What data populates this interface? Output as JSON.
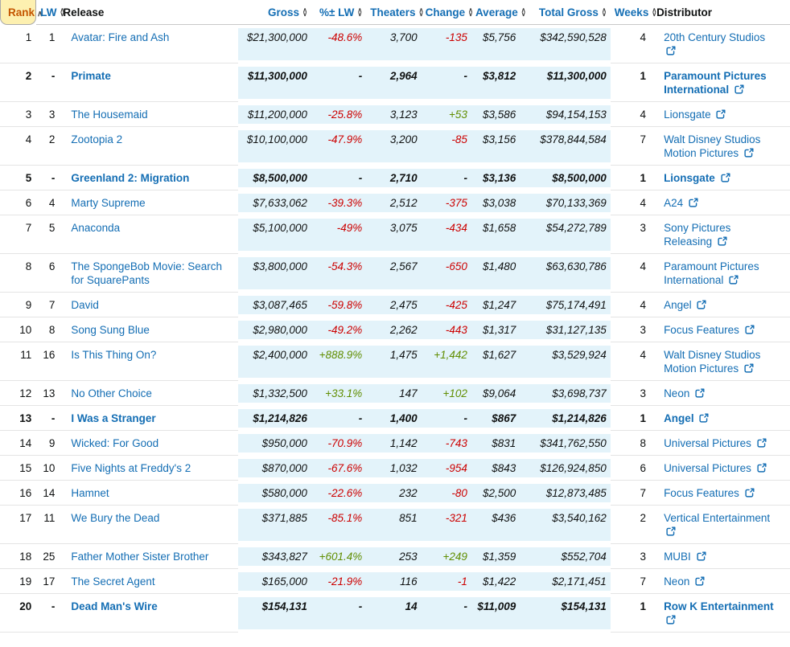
{
  "colors": {
    "link_blue": "#146eb4",
    "negative_red": "#cc0000",
    "positive_green": "#618e02",
    "shaded_column_bg": "#e3f3fa",
    "sorted_header_bg": "#fdf0b0",
    "sorted_header_text": "#c45500"
  },
  "icons": {
    "sort_ascending": "∧",
    "sort_up": "∧",
    "sort_down": "∨",
    "external_link": "external-link-icon"
  },
  "table": {
    "columns": [
      {
        "key": "rank",
        "label": "Rank",
        "sort": "asc",
        "style": "rank",
        "align": "left"
      },
      {
        "key": "lw",
        "label": "LW",
        "sort": "both",
        "style": "link",
        "align": "right"
      },
      {
        "key": "release",
        "label": "Release",
        "sort": "none",
        "style": "plain",
        "align": "left"
      },
      {
        "key": "gross",
        "label": "Gross",
        "sort": "both",
        "style": "link",
        "align": "right"
      },
      {
        "key": "pct",
        "label": "%± LW",
        "sort": "both",
        "style": "link",
        "align": "right"
      },
      {
        "key": "theaters",
        "label": "Theaters",
        "sort": "both",
        "style": "link",
        "align": "right"
      },
      {
        "key": "change",
        "label": "Change",
        "sort": "both",
        "style": "link",
        "align": "right"
      },
      {
        "key": "average",
        "label": "Average",
        "sort": "both",
        "style": "link",
        "align": "right"
      },
      {
        "key": "total_gross",
        "label": "Total Gross",
        "sort": "both",
        "style": "link",
        "align": "right"
      },
      {
        "key": "weeks",
        "label": "Weeks",
        "sort": "both",
        "style": "link",
        "align": "right"
      },
      {
        "key": "distributor",
        "label": "Distributor",
        "sort": "none",
        "style": "plain",
        "align": "left"
      }
    ],
    "rows": [
      {
        "rank": "1",
        "lw": "1",
        "release": "Avatar: Fire and Ash",
        "gross": "$21,300,000",
        "pct": "-48.6%",
        "pct_dir": "neg",
        "theaters": "3,700",
        "change": "-135",
        "change_dir": "neg",
        "average": "$5,756",
        "total_gross": "$342,590,528",
        "weeks": "4",
        "distributor": "20th Century Studios",
        "new": false
      },
      {
        "rank": "2",
        "lw": "-",
        "release": "Primate",
        "gross": "$11,300,000",
        "pct": "-",
        "pct_dir": "none",
        "theaters": "2,964",
        "change": "-",
        "change_dir": "none",
        "average": "$3,812",
        "total_gross": "$11,300,000",
        "weeks": "1",
        "distributor": "Paramount Pictures International",
        "new": true
      },
      {
        "rank": "3",
        "lw": "3",
        "release": "The Housemaid",
        "gross": "$11,200,000",
        "pct": "-25.8%",
        "pct_dir": "neg",
        "theaters": "3,123",
        "change": "+53",
        "change_dir": "pos",
        "average": "$3,586",
        "total_gross": "$94,154,153",
        "weeks": "4",
        "distributor": "Lionsgate",
        "new": false
      },
      {
        "rank": "4",
        "lw": "2",
        "release": "Zootopia 2",
        "gross": "$10,100,000",
        "pct": "-47.9%",
        "pct_dir": "neg",
        "theaters": "3,200",
        "change": "-85",
        "change_dir": "neg",
        "average": "$3,156",
        "total_gross": "$378,844,584",
        "weeks": "7",
        "distributor": "Walt Disney Studios Motion Pictures",
        "new": false
      },
      {
        "rank": "5",
        "lw": "-",
        "release": "Greenland 2: Migration",
        "gross": "$8,500,000",
        "pct": "-",
        "pct_dir": "none",
        "theaters": "2,710",
        "change": "-",
        "change_dir": "none",
        "average": "$3,136",
        "total_gross": "$8,500,000",
        "weeks": "1",
        "distributor": "Lionsgate",
        "new": true
      },
      {
        "rank": "6",
        "lw": "4",
        "release": "Marty Supreme",
        "gross": "$7,633,062",
        "pct": "-39.3%",
        "pct_dir": "neg",
        "theaters": "2,512",
        "change": "-375",
        "change_dir": "neg",
        "average": "$3,038",
        "total_gross": "$70,133,369",
        "weeks": "4",
        "distributor": "A24",
        "new": false
      },
      {
        "rank": "7",
        "lw": "5",
        "release": "Anaconda",
        "gross": "$5,100,000",
        "pct": "-49%",
        "pct_dir": "neg",
        "theaters": "3,075",
        "change": "-434",
        "change_dir": "neg",
        "average": "$1,658",
        "total_gross": "$54,272,789",
        "weeks": "3",
        "distributor": "Sony Pictures Releasing",
        "new": false
      },
      {
        "rank": "8",
        "lw": "6",
        "release": "The SpongeBob Movie: Search for SquarePants",
        "gross": "$3,800,000",
        "pct": "-54.3%",
        "pct_dir": "neg",
        "theaters": "2,567",
        "change": "-650",
        "change_dir": "neg",
        "average": "$1,480",
        "total_gross": "$63,630,786",
        "weeks": "4",
        "distributor": "Paramount Pictures International",
        "new": false
      },
      {
        "rank": "9",
        "lw": "7",
        "release": "David",
        "gross": "$3,087,465",
        "pct": "-59.8%",
        "pct_dir": "neg",
        "theaters": "2,475",
        "change": "-425",
        "change_dir": "neg",
        "average": "$1,247",
        "total_gross": "$75,174,491",
        "weeks": "4",
        "distributor": "Angel",
        "new": false
      },
      {
        "rank": "10",
        "lw": "8",
        "release": "Song Sung Blue",
        "gross": "$2,980,000",
        "pct": "-49.2%",
        "pct_dir": "neg",
        "theaters": "2,262",
        "change": "-443",
        "change_dir": "neg",
        "average": "$1,317",
        "total_gross": "$31,127,135",
        "weeks": "3",
        "distributor": "Focus Features",
        "new": false
      },
      {
        "rank": "11",
        "lw": "16",
        "release": "Is This Thing On?",
        "gross": "$2,400,000",
        "pct": "+888.9%",
        "pct_dir": "pos",
        "theaters": "1,475",
        "change": "+1,442",
        "change_dir": "pos",
        "average": "$1,627",
        "total_gross": "$3,529,924",
        "weeks": "4",
        "distributor": "Walt Disney Studios Motion Pictures",
        "new": false
      },
      {
        "rank": "12",
        "lw": "13",
        "release": "No Other Choice",
        "gross": "$1,332,500",
        "pct": "+33.1%",
        "pct_dir": "pos",
        "theaters": "147",
        "change": "+102",
        "change_dir": "pos",
        "average": "$9,064",
        "total_gross": "$3,698,737",
        "weeks": "3",
        "distributor": "Neon",
        "new": false
      },
      {
        "rank": "13",
        "lw": "-",
        "release": "I Was a Stranger",
        "gross": "$1,214,826",
        "pct": "-",
        "pct_dir": "none",
        "theaters": "1,400",
        "change": "-",
        "change_dir": "none",
        "average": "$867",
        "total_gross": "$1,214,826",
        "weeks": "1",
        "distributor": "Angel",
        "new": true
      },
      {
        "rank": "14",
        "lw": "9",
        "release": "Wicked: For Good",
        "gross": "$950,000",
        "pct": "-70.9%",
        "pct_dir": "neg",
        "theaters": "1,142",
        "change": "-743",
        "change_dir": "neg",
        "average": "$831",
        "total_gross": "$341,762,550",
        "weeks": "8",
        "distributor": "Universal Pictures",
        "new": false
      },
      {
        "rank": "15",
        "lw": "10",
        "release": "Five Nights at Freddy's 2",
        "gross": "$870,000",
        "pct": "-67.6%",
        "pct_dir": "neg",
        "theaters": "1,032",
        "change": "-954",
        "change_dir": "neg",
        "average": "$843",
        "total_gross": "$126,924,850",
        "weeks": "6",
        "distributor": "Universal Pictures",
        "new": false
      },
      {
        "rank": "16",
        "lw": "14",
        "release": "Hamnet",
        "gross": "$580,000",
        "pct": "-22.6%",
        "pct_dir": "neg",
        "theaters": "232",
        "change": "-80",
        "change_dir": "neg",
        "average": "$2,500",
        "total_gross": "$12,873,485",
        "weeks": "7",
        "distributor": "Focus Features",
        "new": false
      },
      {
        "rank": "17",
        "lw": "11",
        "release": "We Bury the Dead",
        "gross": "$371,885",
        "pct": "-85.1%",
        "pct_dir": "neg",
        "theaters": "851",
        "change": "-321",
        "change_dir": "neg",
        "average": "$436",
        "total_gross": "$3,540,162",
        "weeks": "2",
        "distributor": "Vertical Entertainment",
        "new": false
      },
      {
        "rank": "18",
        "lw": "25",
        "release": "Father Mother Sister Brother",
        "gross": "$343,827",
        "pct": "+601.4%",
        "pct_dir": "pos",
        "theaters": "253",
        "change": "+249",
        "change_dir": "pos",
        "average": "$1,359",
        "total_gross": "$552,704",
        "weeks": "3",
        "distributor": "MUBI",
        "new": false
      },
      {
        "rank": "19",
        "lw": "17",
        "release": "The Secret Agent",
        "gross": "$165,000",
        "pct": "-21.9%",
        "pct_dir": "neg",
        "theaters": "116",
        "change": "-1",
        "change_dir": "neg",
        "average": "$1,422",
        "total_gross": "$2,171,451",
        "weeks": "7",
        "distributor": "Neon",
        "new": false
      },
      {
        "rank": "20",
        "lw": "-",
        "release": "Dead Man's Wire",
        "gross": "$154,131",
        "pct": "-",
        "pct_dir": "none",
        "theaters": "14",
        "change": "-",
        "change_dir": "none",
        "average": "$11,009",
        "total_gross": "$154,131",
        "weeks": "1",
        "distributor": "Row K Entertainment",
        "new": true
      }
    ]
  }
}
